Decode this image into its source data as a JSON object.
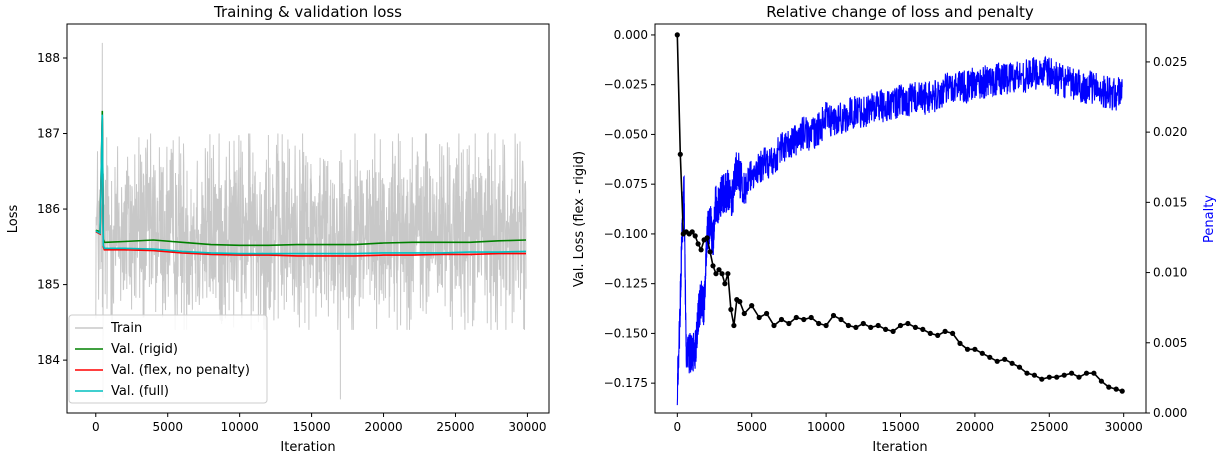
{
  "chart_data": [
    {
      "type": "line",
      "title": "Training & validation loss",
      "xlabel": "Iteration",
      "ylabel": "Loss",
      "xlim": [
        -2000,
        31500
      ],
      "ylim": [
        183.3,
        188.45
      ],
      "xticks": [
        0,
        5000,
        10000,
        15000,
        20000,
        25000,
        30000
      ],
      "yticks": [
        184,
        185,
        186,
        187,
        188
      ],
      "legend_position": "lower-left",
      "grid": false,
      "colors": {
        "train": "#c8c8c8",
        "rigid": "#008000",
        "flex": "#ff0000",
        "full": "#00bfbf"
      },
      "series": [
        {
          "name": "Train",
          "key": "train",
          "mean": 185.7,
          "band_lower": 184.7,
          "band_upper": 186.7,
          "spikes": [
            [
              450,
              188.2
            ],
            [
              500,
              183.5
            ],
            [
              17000,
              183.48
            ],
            [
              3000,
              186.95
            ],
            [
              12000,
              186.98
            ],
            [
              22000,
              186.95
            ]
          ],
          "x_range": [
            0,
            29900
          ]
        },
        {
          "name": "Val. (rigid)",
          "key": "rigid",
          "x": [
            0,
            300,
            450,
            520,
            600,
            700,
            2000,
            4000,
            6000,
            8000,
            10000,
            12000,
            14000,
            16000,
            18000,
            20000,
            22000,
            24000,
            26000,
            28000,
            29900
          ],
          "y": [
            185.72,
            185.7,
            187.3,
            185.6,
            185.56,
            185.56,
            185.57,
            185.59,
            185.56,
            185.53,
            185.52,
            185.52,
            185.53,
            185.53,
            185.53,
            185.55,
            185.56,
            185.56,
            185.56,
            185.58,
            185.59
          ]
        },
        {
          "name": "Val. (flex, no penalty)",
          "key": "flex",
          "x": [
            0,
            300,
            450,
            520,
            600,
            700,
            2000,
            4000,
            6000,
            8000,
            10000,
            12000,
            14000,
            16000,
            18000,
            20000,
            22000,
            24000,
            26000,
            28000,
            29900
          ],
          "y": [
            185.7,
            185.67,
            187.2,
            185.5,
            185.46,
            185.46,
            185.46,
            185.45,
            185.42,
            185.4,
            185.39,
            185.39,
            185.38,
            185.38,
            185.38,
            185.39,
            185.39,
            185.4,
            185.4,
            185.41,
            185.41
          ]
        },
        {
          "name": "Val. (full)",
          "key": "full",
          "x": [
            0,
            300,
            450,
            520,
            600,
            700,
            2000,
            4000,
            6000,
            8000,
            10000,
            12000,
            14000,
            16000,
            18000,
            20000,
            22000,
            24000,
            26000,
            28000,
            29900
          ],
          "y": [
            185.71,
            185.68,
            187.25,
            185.52,
            185.48,
            185.48,
            185.48,
            185.47,
            185.44,
            185.42,
            185.41,
            185.41,
            185.41,
            185.41,
            185.41,
            185.42,
            185.42,
            185.42,
            185.43,
            185.43,
            185.44
          ]
        }
      ]
    },
    {
      "type": "line",
      "title": "Relative change of loss and penalty",
      "xlabel": "Iteration",
      "ylabel": "Val. Loss (flex - rigid)",
      "y2label": "Penalty",
      "xlim": [
        -1500,
        31500
      ],
      "ylim": [
        -0.19,
        0.0055
      ],
      "y2lim": [
        0.0,
        0.0277
      ],
      "xticks": [
        0,
        5000,
        10000,
        15000,
        20000,
        25000,
        30000
      ],
      "yticks": [
        0.0,
        -0.025,
        -0.05,
        -0.075,
        -0.1,
        -0.125,
        -0.15,
        -0.175
      ],
      "ytick_labels": [
        "0.000",
        "−0.025",
        "−0.050",
        "−0.075",
        "−0.100",
        "−0.125",
        "−0.150",
        "−0.175"
      ],
      "y2ticks": [
        0.0,
        0.005,
        0.01,
        0.015,
        0.02,
        0.025
      ],
      "y2tick_labels": [
        "0.000",
        "0.005",
        "0.010",
        "0.015",
        "0.020",
        "0.025"
      ],
      "grid": false,
      "colors": {
        "loss": "#000000",
        "penalty": "#0000ff"
      },
      "loss_series": {
        "x": [
          0,
          200,
          400,
          600,
          800,
          1000,
          1200,
          1400,
          1600,
          1800,
          2000,
          2200,
          2400,
          2600,
          2800,
          3000,
          3200,
          3400,
          3600,
          3800,
          4000,
          4200,
          4500,
          5000,
          5500,
          6000,
          6500,
          7000,
          7500,
          8000,
          8500,
          9000,
          9500,
          10000,
          10500,
          11000,
          11500,
          12000,
          12500,
          13000,
          13500,
          14000,
          14500,
          15000,
          15500,
          16000,
          16500,
          17000,
          17500,
          18000,
          18500,
          19000,
          19500,
          20000,
          20500,
          21000,
          21500,
          22000,
          22500,
          23000,
          23500,
          24000,
          24500,
          25000,
          25500,
          26000,
          26500,
          27000,
          27500,
          28000,
          28500,
          29000,
          29500,
          29900
        ],
        "y": [
          0.0,
          -0.06,
          -0.1,
          -0.099,
          -0.1,
          -0.099,
          -0.101,
          -0.105,
          -0.108,
          -0.103,
          -0.102,
          -0.109,
          -0.116,
          -0.12,
          -0.118,
          -0.12,
          -0.125,
          -0.12,
          -0.138,
          -0.146,
          -0.133,
          -0.134,
          -0.14,
          -0.136,
          -0.142,
          -0.14,
          -0.146,
          -0.143,
          -0.145,
          -0.142,
          -0.143,
          -0.142,
          -0.145,
          -0.146,
          -0.141,
          -0.143,
          -0.146,
          -0.147,
          -0.145,
          -0.147,
          -0.146,
          -0.148,
          -0.149,
          -0.146,
          -0.145,
          -0.147,
          -0.148,
          -0.15,
          -0.151,
          -0.149,
          -0.15,
          -0.155,
          -0.158,
          -0.158,
          -0.16,
          -0.162,
          -0.164,
          -0.163,
          -0.165,
          -0.167,
          -0.17,
          -0.171,
          -0.173,
          -0.172,
          -0.172,
          -0.171,
          -0.17,
          -0.172,
          -0.17,
          -0.17,
          -0.174,
          -0.177,
          -0.178,
          -0.179
        ]
      },
      "penalty_series": {
        "x": [
          0,
          150,
          300,
          450,
          600,
          800,
          1000,
          1200,
          1400,
          1600,
          1800,
          2000,
          2200,
          2400,
          2600,
          2800,
          3000,
          3200,
          3400,
          3600,
          3800,
          4000,
          4300,
          4600,
          5000,
          5500,
          6000,
          6500,
          7000,
          7500,
          8000,
          8500,
          9000,
          9500,
          10000,
          10500,
          11000,
          11500,
          12000,
          12500,
          13000,
          13500,
          14000,
          14500,
          15000,
          15500,
          16000,
          16500,
          17000,
          17500,
          18000,
          18500,
          19000,
          19500,
          20000,
          20500,
          21000,
          21500,
          22000,
          22500,
          23000,
          23500,
          24000,
          24500,
          25000,
          25500,
          26000,
          26500,
          27000,
          27500,
          28000,
          28500,
          29000,
          29500,
          29900
        ],
        "y": [
          0.0015,
          0.006,
          0.012,
          0.016,
          0.004,
          0.0042,
          0.0042,
          0.0043,
          0.007,
          0.008,
          0.0075,
          0.013,
          0.0135,
          0.0125,
          0.015,
          0.0148,
          0.0155,
          0.0155,
          0.016,
          0.015,
          0.016,
          0.0175,
          0.0165,
          0.016,
          0.017,
          0.0175,
          0.0178,
          0.018,
          0.019,
          0.019,
          0.0195,
          0.02,
          0.0198,
          0.0202,
          0.021,
          0.0208,
          0.021,
          0.0212,
          0.0215,
          0.0215,
          0.0217,
          0.022,
          0.0218,
          0.022,
          0.0222,
          0.0222,
          0.0225,
          0.0224,
          0.0225,
          0.0226,
          0.023,
          0.0232,
          0.0234,
          0.0232,
          0.0235,
          0.0235,
          0.0237,
          0.0238,
          0.0238,
          0.024,
          0.024,
          0.024,
          0.0242,
          0.0243,
          0.0242,
          0.0238,
          0.0236,
          0.0234,
          0.0233,
          0.0232,
          0.0232,
          0.023,
          0.0228,
          0.0226,
          0.0232
        ]
      }
    }
  ]
}
